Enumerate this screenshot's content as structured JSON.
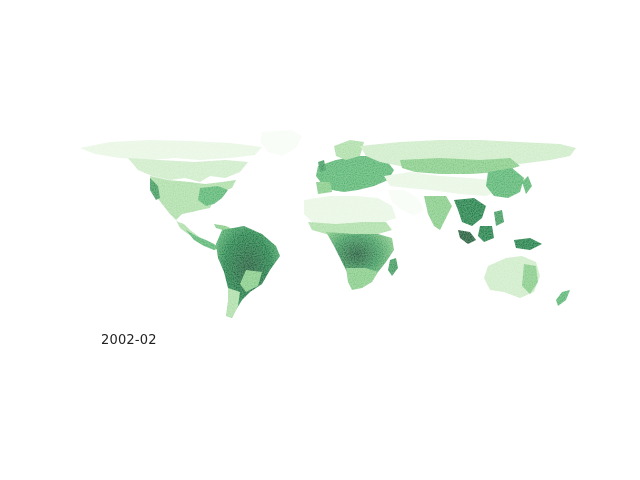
{
  "map": {
    "variable_legend": "",
    "date_label": "2002-02",
    "colormap": {
      "name": "Greens",
      "stops": [
        "#f7fcf5",
        "#e5f5e0",
        "#c7e9c0",
        "#a1d99b",
        "#74c476",
        "#41ab5d",
        "#238b45",
        "#006d2c",
        "#00441b"
      ]
    },
    "ocean_color": "#ffffff",
    "projection": "equirectangular"
  }
}
